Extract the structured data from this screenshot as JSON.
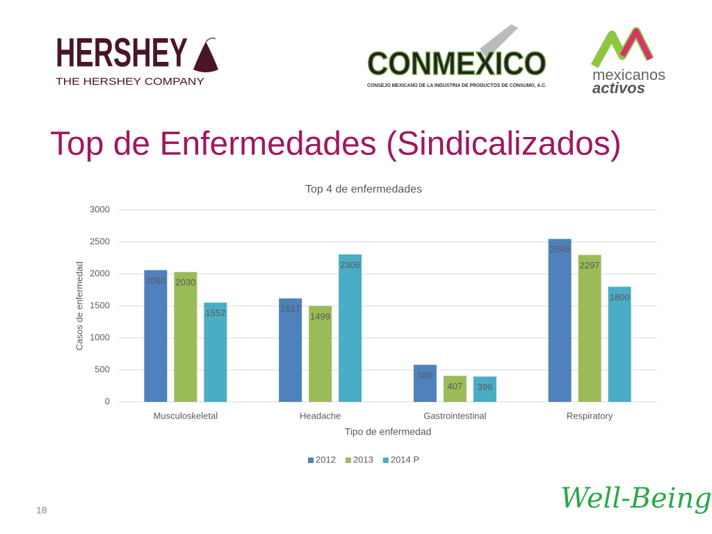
{
  "slide": {
    "logos": {
      "hershey": {
        "name": "HERSHEY",
        "tagline": "THE HERSHEY COMPANY"
      },
      "conmexico": {
        "name": "CONMEXICO",
        "tagline": "CONSEJO MEXICANO DE LA INDUSTRIA DE PRODUCTOS DE CONSUMO, A.C."
      },
      "mexicanos_activos": {
        "line1": "mexicanos",
        "line2": "activos"
      }
    },
    "title": "Top de Enfermedades (Sindicalizados)",
    "footer": {
      "page_number": "18",
      "brand": "Well-Being."
    }
  },
  "chart_data": {
    "type": "bar",
    "title": "Top 4 de enfermedades",
    "x_label": "Tipo de enfermedad",
    "y_label": "Casos de enfermedad",
    "categories": [
      "Musculoskeletal",
      "Headache",
      "Gastrointestinal",
      "Respiratory"
    ],
    "series": [
      {
        "name": "2012",
        "color": "#4f81bd",
        "values": [
          2060,
          1617,
          580,
          2548
        ]
      },
      {
        "name": "2013",
        "color": "#9bbb59",
        "values": [
          2030,
          1499,
          407,
          2297
        ]
      },
      {
        "name": "2014 P",
        "color": "#4bacc6",
        "values": [
          1552,
          2306,
          396,
          1800
        ]
      }
    ],
    "ylim": [
      0,
      3000
    ],
    "yticks": [
      0,
      500,
      1000,
      1500,
      2000,
      2500,
      3000
    ],
    "grid": true,
    "legend": "bottom",
    "data_labels": true
  }
}
